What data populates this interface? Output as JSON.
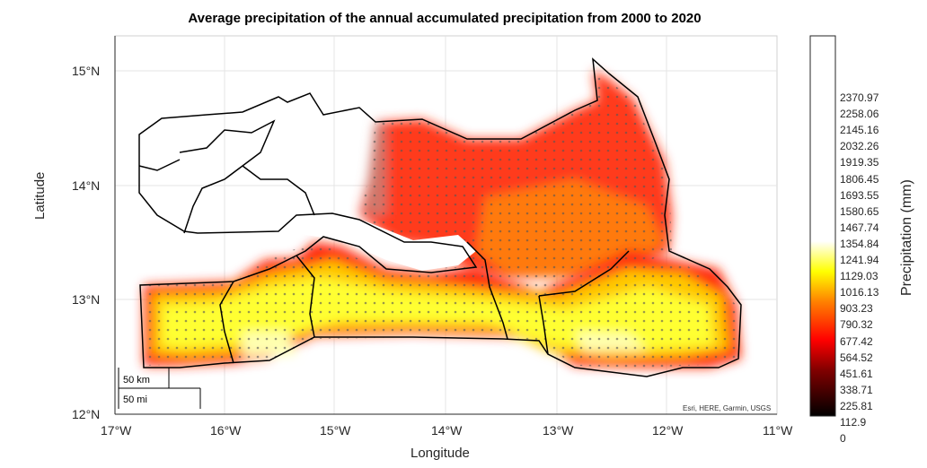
{
  "title": "Average precipitation of the annual accumulated precipitation from 2000 to 2020",
  "axes": {
    "xlabel": "Longitude",
    "ylabel": "Latitude",
    "x_ticks": [
      "17°W",
      "16°W",
      "15°W",
      "14°W",
      "13°W",
      "12°W",
      "11°W"
    ],
    "y_ticks": [
      "15°N",
      "14°N",
      "13°N",
      "12°N"
    ]
  },
  "colorbar": {
    "label": "Precipitation (mm)",
    "ticks": [
      "2370.97",
      "2258.06",
      "2145.16",
      "2032.26",
      "1919.35",
      "1806.45",
      "1693.55",
      "1580.65",
      "1467.74",
      "1354.84",
      "1241.94",
      "1129.03",
      "1016.13",
      "903.23",
      "790.32",
      "677.42",
      "564.52",
      "451.61",
      "338.71",
      "225.81",
      "112.9",
      "0"
    ],
    "colormap": "hot"
  },
  "scalebar": {
    "km": "50 km",
    "mi": "50 mi"
  },
  "attribution": "Esri, HERE, Garmin, USGS",
  "colors": {
    "grid": "#e6e6e6",
    "border": "#000000",
    "dots": "#333333"
  }
}
